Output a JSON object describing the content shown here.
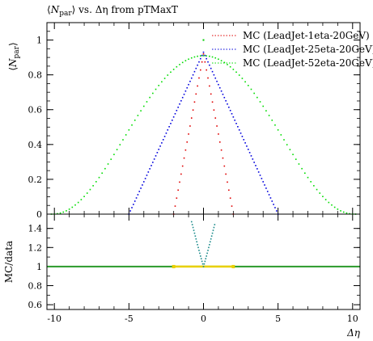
{
  "chart_data": [
    {
      "type": "scatter",
      "title": "⟨N_par⟩ vs. Δη from pTMaxT",
      "title_parts": {
        "main": "N",
        "sub": "par",
        "rest": " vs. Δη from pTMaxT"
      },
      "ylabel": "⟨N_par⟩",
      "ylabel_parts": {
        "main": "N",
        "sub": "par"
      },
      "xlabel": "",
      "xlim": [
        -10.5,
        10.5
      ],
      "ylim": [
        0,
        1.1
      ],
      "xticks": [
        -10,
        -5,
        0,
        5,
        10
      ],
      "yticks": [
        0,
        0.2,
        0.4,
        0.6,
        0.8,
        1
      ],
      "ytick_labels": [
        "0",
        "0.2",
        "0.4",
        "0.6",
        "0.8",
        "1"
      ],
      "legend_position": "top-right",
      "series": [
        {
          "name": "MC (LeadJet-1eta-20GeV)",
          "color": "#e00000",
          "peak": 0.92,
          "half_width": 2.0,
          "shape": "triangle",
          "step": 0.1
        },
        {
          "name": "MC (LeadJet-25eta-20GeV)",
          "color": "#0000dd",
          "peak": 0.93,
          "half_width": 5.0,
          "shape": "triangle",
          "step": 0.1
        },
        {
          "name": "MC (LeadJet-52eta-20GeV)",
          "color": "#00dd00",
          "peak": 0.91,
          "half_width": 10.2,
          "shape": "bell",
          "step": 0.2
        }
      ],
      "stray_point": {
        "x": 0,
        "y": 1.0,
        "color": "#00cc00"
      }
    },
    {
      "type": "line",
      "title": "",
      "ylabel": "MC/data",
      "xlabel": "Δη",
      "xlim": [
        -10.5,
        10.5
      ],
      "ylim": [
        0.55,
        1.55
      ],
      "xticks": [
        -10,
        -5,
        0,
        5,
        10
      ],
      "xtick_labels": [
        "-10",
        "-5",
        "0",
        "5",
        "10"
      ],
      "yticks": [
        0.6,
        0.8,
        1,
        1.2,
        1.4
      ],
      "ytick_labels": [
        "0.6",
        "0.8",
        "1",
        "1.2",
        "1.4"
      ],
      "reference_value": 1.0,
      "band": {
        "from": -2,
        "to": 2,
        "color": "#e8d000"
      },
      "v_left": [
        {
          "x": -0.8,
          "y": 1.47
        },
        {
          "x": -0.6,
          "y": 1.35
        },
        {
          "x": -0.4,
          "y": 1.23
        },
        {
          "x": -0.2,
          "y": 1.11
        },
        {
          "x": 0.0,
          "y": 1.0
        }
      ],
      "v_right": [
        {
          "x": 0.0,
          "y": 1.0
        },
        {
          "x": 0.2,
          "y": 1.11
        },
        {
          "x": 0.4,
          "y": 1.23
        },
        {
          "x": 0.6,
          "y": 1.35
        },
        {
          "x": 0.8,
          "y": 1.47
        }
      ],
      "line_color": "#2a9a2a"
    }
  ]
}
